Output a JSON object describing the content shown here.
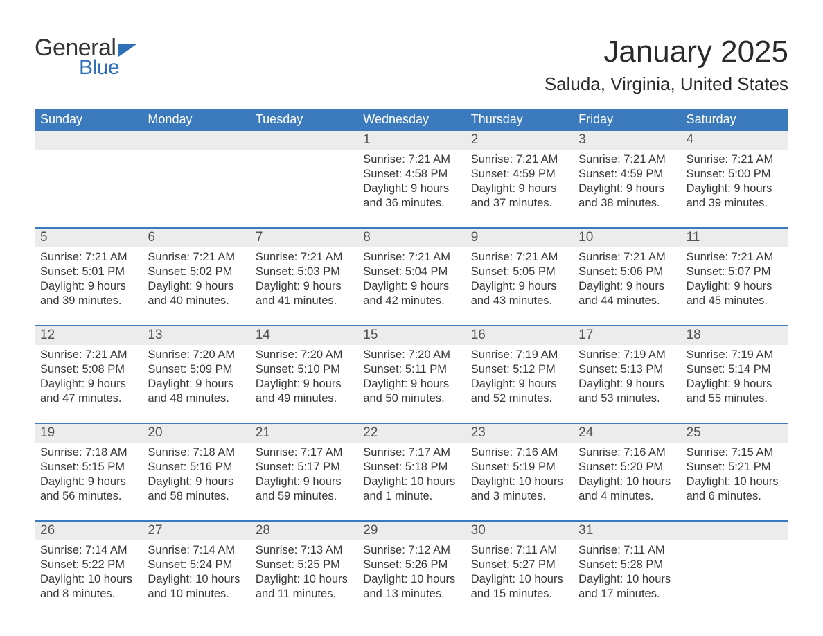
{
  "brand": {
    "general": "General",
    "blue": "Blue"
  },
  "title": "January 2025",
  "location": "Saluda, Virginia, United States",
  "colors": {
    "header_bg": "#3b7bbd",
    "header_text": "#ffffff",
    "daynum_bg": "#ececec",
    "daynum_text": "#525252",
    "body_text": "#383838",
    "accent": "#2e71b8",
    "week_border": "#3b7bbd",
    "page_bg": "#ffffff"
  },
  "typography": {
    "title_pt": 44,
    "location_pt": 26,
    "dow_pt": 18,
    "daynum_pt": 19,
    "body_pt": 16.5,
    "family": "Arial"
  },
  "columns": [
    "Sunday",
    "Monday",
    "Tuesday",
    "Wednesday",
    "Thursday",
    "Friday",
    "Saturday"
  ],
  "weeks": [
    [
      null,
      null,
      null,
      {
        "n": "1",
        "sr": "Sunrise: 7:21 AM",
        "ss": "Sunset: 4:58 PM",
        "d1": "Daylight: 9 hours",
        "d2": "and 36 minutes."
      },
      {
        "n": "2",
        "sr": "Sunrise: 7:21 AM",
        "ss": "Sunset: 4:59 PM",
        "d1": "Daylight: 9 hours",
        "d2": "and 37 minutes."
      },
      {
        "n": "3",
        "sr": "Sunrise: 7:21 AM",
        "ss": "Sunset: 4:59 PM",
        "d1": "Daylight: 9 hours",
        "d2": "and 38 minutes."
      },
      {
        "n": "4",
        "sr": "Sunrise: 7:21 AM",
        "ss": "Sunset: 5:00 PM",
        "d1": "Daylight: 9 hours",
        "d2": "and 39 minutes."
      }
    ],
    [
      {
        "n": "5",
        "sr": "Sunrise: 7:21 AM",
        "ss": "Sunset: 5:01 PM",
        "d1": "Daylight: 9 hours",
        "d2": "and 39 minutes."
      },
      {
        "n": "6",
        "sr": "Sunrise: 7:21 AM",
        "ss": "Sunset: 5:02 PM",
        "d1": "Daylight: 9 hours",
        "d2": "and 40 minutes."
      },
      {
        "n": "7",
        "sr": "Sunrise: 7:21 AM",
        "ss": "Sunset: 5:03 PM",
        "d1": "Daylight: 9 hours",
        "d2": "and 41 minutes."
      },
      {
        "n": "8",
        "sr": "Sunrise: 7:21 AM",
        "ss": "Sunset: 5:04 PM",
        "d1": "Daylight: 9 hours",
        "d2": "and 42 minutes."
      },
      {
        "n": "9",
        "sr": "Sunrise: 7:21 AM",
        "ss": "Sunset: 5:05 PM",
        "d1": "Daylight: 9 hours",
        "d2": "and 43 minutes."
      },
      {
        "n": "10",
        "sr": "Sunrise: 7:21 AM",
        "ss": "Sunset: 5:06 PM",
        "d1": "Daylight: 9 hours",
        "d2": "and 44 minutes."
      },
      {
        "n": "11",
        "sr": "Sunrise: 7:21 AM",
        "ss": "Sunset: 5:07 PM",
        "d1": "Daylight: 9 hours",
        "d2": "and 45 minutes."
      }
    ],
    [
      {
        "n": "12",
        "sr": "Sunrise: 7:21 AM",
        "ss": "Sunset: 5:08 PM",
        "d1": "Daylight: 9 hours",
        "d2": "and 47 minutes."
      },
      {
        "n": "13",
        "sr": "Sunrise: 7:20 AM",
        "ss": "Sunset: 5:09 PM",
        "d1": "Daylight: 9 hours",
        "d2": "and 48 minutes."
      },
      {
        "n": "14",
        "sr": "Sunrise: 7:20 AM",
        "ss": "Sunset: 5:10 PM",
        "d1": "Daylight: 9 hours",
        "d2": "and 49 minutes."
      },
      {
        "n": "15",
        "sr": "Sunrise: 7:20 AM",
        "ss": "Sunset: 5:11 PM",
        "d1": "Daylight: 9 hours",
        "d2": "and 50 minutes."
      },
      {
        "n": "16",
        "sr": "Sunrise: 7:19 AM",
        "ss": "Sunset: 5:12 PM",
        "d1": "Daylight: 9 hours",
        "d2": "and 52 minutes."
      },
      {
        "n": "17",
        "sr": "Sunrise: 7:19 AM",
        "ss": "Sunset: 5:13 PM",
        "d1": "Daylight: 9 hours",
        "d2": "and 53 minutes."
      },
      {
        "n": "18",
        "sr": "Sunrise: 7:19 AM",
        "ss": "Sunset: 5:14 PM",
        "d1": "Daylight: 9 hours",
        "d2": "and 55 minutes."
      }
    ],
    [
      {
        "n": "19",
        "sr": "Sunrise: 7:18 AM",
        "ss": "Sunset: 5:15 PM",
        "d1": "Daylight: 9 hours",
        "d2": "and 56 minutes."
      },
      {
        "n": "20",
        "sr": "Sunrise: 7:18 AM",
        "ss": "Sunset: 5:16 PM",
        "d1": "Daylight: 9 hours",
        "d2": "and 58 minutes."
      },
      {
        "n": "21",
        "sr": "Sunrise: 7:17 AM",
        "ss": "Sunset: 5:17 PM",
        "d1": "Daylight: 9 hours",
        "d2": "and 59 minutes."
      },
      {
        "n": "22",
        "sr": "Sunrise: 7:17 AM",
        "ss": "Sunset: 5:18 PM",
        "d1": "Daylight: 10 hours",
        "d2": "and 1 minute."
      },
      {
        "n": "23",
        "sr": "Sunrise: 7:16 AM",
        "ss": "Sunset: 5:19 PM",
        "d1": "Daylight: 10 hours",
        "d2": "and 3 minutes."
      },
      {
        "n": "24",
        "sr": "Sunrise: 7:16 AM",
        "ss": "Sunset: 5:20 PM",
        "d1": "Daylight: 10 hours",
        "d2": "and 4 minutes."
      },
      {
        "n": "25",
        "sr": "Sunrise: 7:15 AM",
        "ss": "Sunset: 5:21 PM",
        "d1": "Daylight: 10 hours",
        "d2": "and 6 minutes."
      }
    ],
    [
      {
        "n": "26",
        "sr": "Sunrise: 7:14 AM",
        "ss": "Sunset: 5:22 PM",
        "d1": "Daylight: 10 hours",
        "d2": "and 8 minutes."
      },
      {
        "n": "27",
        "sr": "Sunrise: 7:14 AM",
        "ss": "Sunset: 5:24 PM",
        "d1": "Daylight: 10 hours",
        "d2": "and 10 minutes."
      },
      {
        "n": "28",
        "sr": "Sunrise: 7:13 AM",
        "ss": "Sunset: 5:25 PM",
        "d1": "Daylight: 10 hours",
        "d2": "and 11 minutes."
      },
      {
        "n": "29",
        "sr": "Sunrise: 7:12 AM",
        "ss": "Sunset: 5:26 PM",
        "d1": "Daylight: 10 hours",
        "d2": "and 13 minutes."
      },
      {
        "n": "30",
        "sr": "Sunrise: 7:11 AM",
        "ss": "Sunset: 5:27 PM",
        "d1": "Daylight: 10 hours",
        "d2": "and 15 minutes."
      },
      {
        "n": "31",
        "sr": "Sunrise: 7:11 AM",
        "ss": "Sunset: 5:28 PM",
        "d1": "Daylight: 10 hours",
        "d2": "and 17 minutes."
      },
      null
    ]
  ]
}
